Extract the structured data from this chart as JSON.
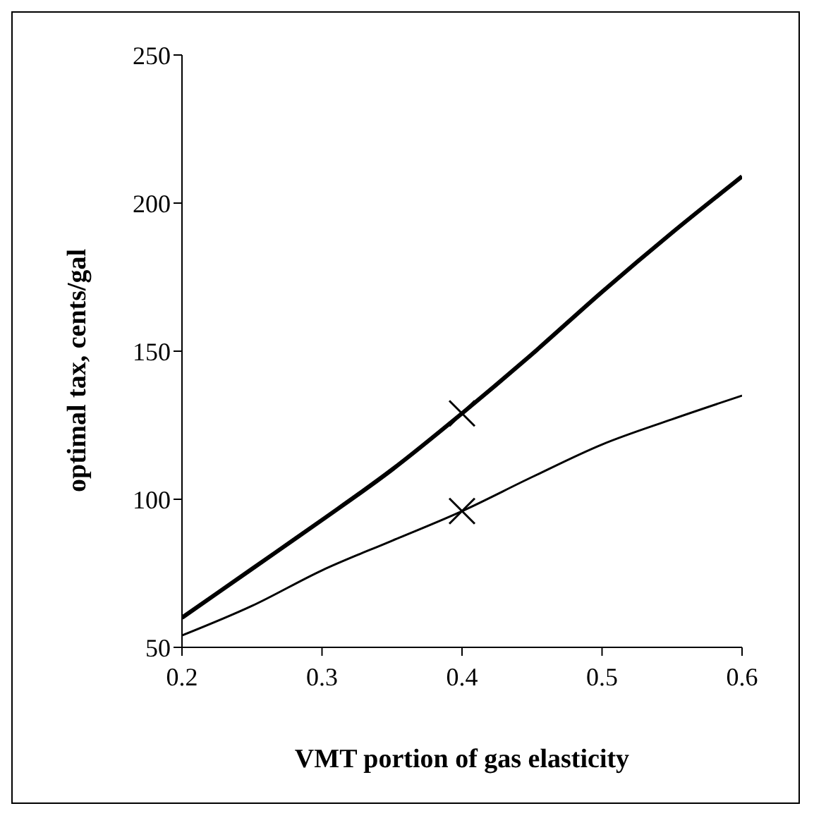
{
  "chart_data": {
    "type": "line",
    "xlabel": "VMT portion of gas elasticity",
    "ylabel": "optimal tax, cents/gal",
    "xlim": [
      0.2,
      0.6
    ],
    "xticks": [
      0.2,
      0.3,
      0.4,
      0.5,
      0.6
    ],
    "ylim": [
      50,
      250
    ],
    "yticks": [
      50,
      100,
      150,
      200,
      250
    ],
    "grid": false,
    "series": [
      {
        "color": "#000000",
        "marker": "none",
        "x": [
          0.2,
          0.25,
          0.3,
          0.35,
          0.4,
          0.45,
          0.5,
          0.55,
          0.6
        ],
        "values": [
          60,
          76.5,
          93,
          110,
          129,
          149,
          170,
          190,
          209
        ]
      },
      {
        "color": "#000000",
        "marker": "none",
        "x": [
          0.2,
          0.25,
          0.3,
          0.35,
          0.4,
          0.45,
          0.5,
          0.55,
          0.6
        ],
        "values": [
          54,
          64,
          76,
          86,
          96,
          107.5,
          118.5,
          127,
          135
        ]
      },
      {
        "type": "scatter",
        "color": "#000000",
        "marker": "cross",
        "x": [
          0.4,
          0.4
        ],
        "values": [
          129,
          96
        ]
      }
    ]
  }
}
